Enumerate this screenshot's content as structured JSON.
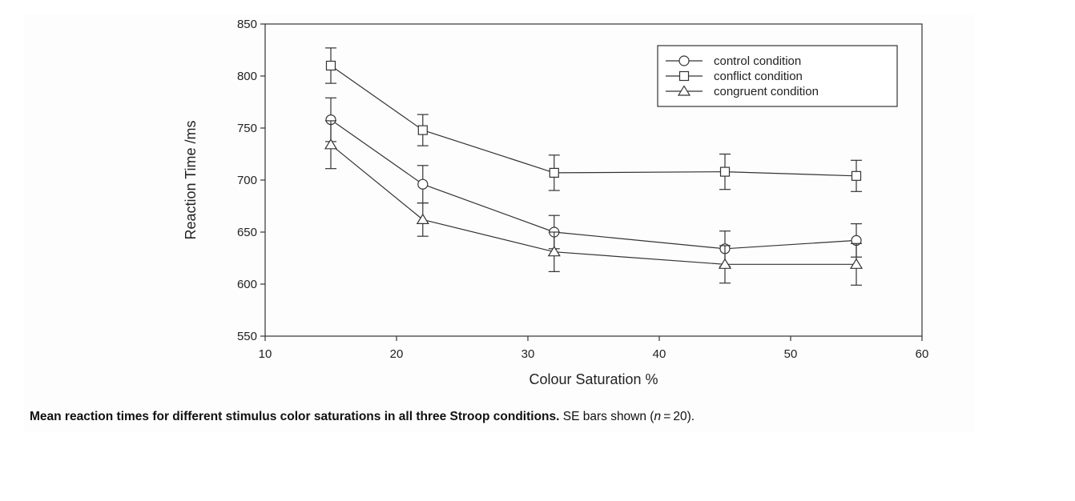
{
  "chart_data": {
    "type": "line",
    "xlabel": "Colour Saturation %",
    "ylabel": "Reaction Time /ms",
    "xlim": [
      10,
      60
    ],
    "ylim": [
      550,
      850
    ],
    "x_ticks": [
      "10",
      "20",
      "30",
      "40",
      "50",
      "60"
    ],
    "y_ticks": [
      "550",
      "600",
      "650",
      "700",
      "750",
      "800",
      "850"
    ],
    "grid": false,
    "legend_position": "top-right",
    "x": [
      15,
      22,
      32,
      45,
      55
    ],
    "series": [
      {
        "name": "control condition",
        "marker": "circle",
        "values": [
          758,
          696,
          650,
          634,
          642
        ],
        "errors": [
          21,
          18,
          16,
          17,
          16
        ]
      },
      {
        "name": "conflict condition",
        "marker": "square",
        "values": [
          810,
          748,
          707,
          708,
          704
        ],
        "errors": [
          17,
          15,
          17,
          17,
          15
        ]
      },
      {
        "name": "congruent condition",
        "marker": "triangle",
        "values": [
          734,
          662,
          631,
          619,
          619
        ],
        "errors": [
          23,
          16,
          19,
          18,
          20
        ]
      }
    ],
    "line_color": "#333333"
  },
  "caption": {
    "bold": "Mean reaction times for different stimulus color saturations in all three Stroop conditions.",
    "rest_before_n": "SE bars shown (",
    "n_symbol": "n",
    "rest_after_n": " = 20)."
  }
}
